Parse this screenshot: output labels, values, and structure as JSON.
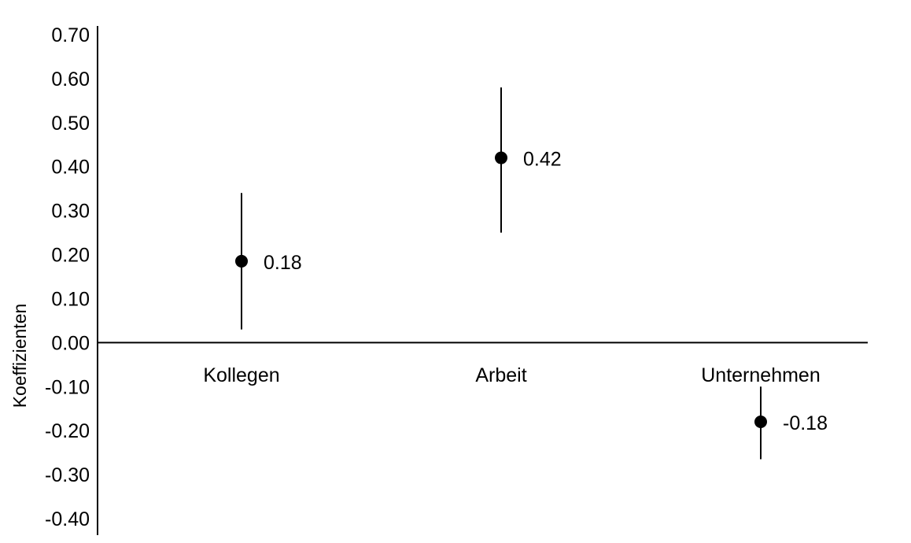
{
  "chart_data": {
    "type": "scatter",
    "title": "",
    "xlabel": "",
    "ylabel": "Koeffizienten",
    "ylim": [
      -0.4,
      0.7
    ],
    "yticks": [
      "0.70",
      "0.60",
      "0.50",
      "0.40",
      "0.30",
      "0.20",
      "0.10",
      "0.00",
      "-0.10",
      "-0.20",
      "-0.30",
      "-0.40"
    ],
    "grid": false,
    "legend": "none",
    "categories": [
      "Kollegen",
      "Arbeit",
      "Unternehmen"
    ],
    "points": [
      {
        "category": "Kollegen",
        "value": 0.185,
        "label": "0.18",
        "lower": 0.03,
        "upper": 0.34
      },
      {
        "category": "Arbeit",
        "value": 0.42,
        "label": "0.42",
        "lower": 0.25,
        "upper": 0.58
      },
      {
        "category": "Unternehmen",
        "value": -0.18,
        "label": "-0.18",
        "lower": -0.265,
        "upper": -0.1
      }
    ],
    "colors": {
      "marker": "#000000",
      "axis": "#000000"
    }
  }
}
